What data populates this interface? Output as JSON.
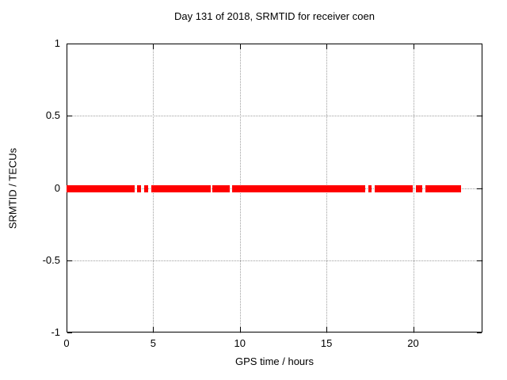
{
  "window": {
    "background": "#ffffff"
  },
  "chart_data": {
    "type": "line",
    "title": "Day 131 of 2018, SRMTID for receiver coen",
    "xlabel": "GPS time / hours",
    "ylabel": "SRMTID / TECUs",
    "xlim": [
      0,
      24
    ],
    "ylim": [
      -1,
      1
    ],
    "xticks": [
      0,
      5,
      10,
      15,
      20
    ],
    "xtick_labels": [
      "0",
      "5",
      "10",
      "15",
      "20"
    ],
    "yticks": [
      1,
      0.5,
      0,
      -0.5,
      -1
    ],
    "ytick_labels": [
      "1",
      "0.5",
      "0",
      "-0.5",
      "-1"
    ],
    "grid": true,
    "legend_position": "none",
    "colors": {
      "series": "#ff0000",
      "grid": "#9e9e9e",
      "axis": "#000000",
      "background": "#ffffff"
    },
    "series": [
      {
        "name": "SRMTID",
        "color": "#ff0000",
        "y_value": 0,
        "style": "thick horizontal band at y=0 with data gaps",
        "segments_hours": [
          [
            0.0,
            3.93
          ],
          [
            4.08,
            4.31
          ],
          [
            4.47,
            4.73
          ],
          [
            4.89,
            8.32
          ],
          [
            8.43,
            9.42
          ],
          [
            9.55,
            17.23
          ],
          [
            17.42,
            17.6
          ],
          [
            17.78,
            19.98
          ],
          [
            20.16,
            20.54
          ],
          [
            20.7,
            22.75
          ]
        ]
      }
    ]
  }
}
